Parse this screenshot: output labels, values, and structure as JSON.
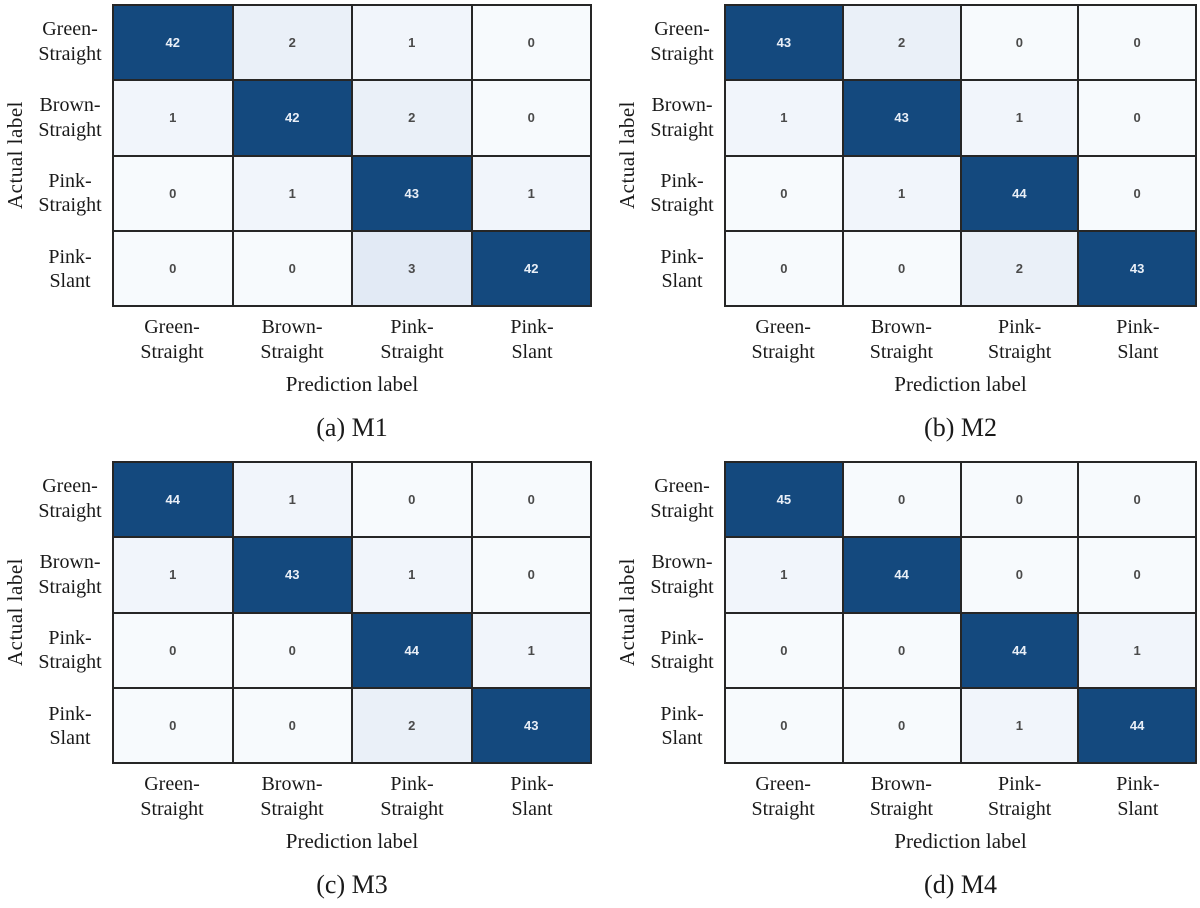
{
  "figure": {
    "y_axis_label": "Actual label",
    "x_axis_label": "Prediction label"
  },
  "labels": {
    "classes": [
      "Green-Straight",
      "Brown-Straight",
      "Pink-Straight",
      "Pink-Slant"
    ],
    "class_lines": [
      [
        "Green-",
        "Straight"
      ],
      [
        "Brown-",
        "Straight"
      ],
      [
        "Pink-",
        "Straight"
      ],
      [
        "Pink-",
        "Slant"
      ]
    ]
  },
  "colors": {
    "diagonal_fill": "#14497E",
    "cell_text_on_dark": "#E9EFF7",
    "cell_text_on_light": "#4A4A4A",
    "light_scale": [
      "#F7FAFD",
      "#F1F5FB",
      "#EAF0F8",
      "#E2EAF5"
    ],
    "grid_line": "#262626",
    "diagonal_threshold": 10
  },
  "chart_data": [
    {
      "type": "heatmap",
      "title": "(a) M1",
      "xlabel": "Prediction label",
      "ylabel": "Actual label",
      "categories": [
        "Green-Straight",
        "Brown-Straight",
        "Pink-Straight",
        "Pink-Slant"
      ],
      "matrix": [
        [
          42,
          2,
          1,
          0
        ],
        [
          1,
          42,
          2,
          0
        ],
        [
          0,
          1,
          43,
          1
        ],
        [
          0,
          0,
          3,
          42
        ]
      ]
    },
    {
      "type": "heatmap",
      "title": "(b) M2",
      "xlabel": "Prediction label",
      "ylabel": "Actual label",
      "categories": [
        "Green-Straight",
        "Brown-Straight",
        "Pink-Straight",
        "Pink-Slant"
      ],
      "matrix": [
        [
          43,
          2,
          0,
          0
        ],
        [
          1,
          43,
          1,
          0
        ],
        [
          0,
          1,
          44,
          0
        ],
        [
          0,
          0,
          2,
          43
        ]
      ]
    },
    {
      "type": "heatmap",
      "title": "(c) M3",
      "xlabel": "Prediction label",
      "ylabel": "Actual label",
      "categories": [
        "Green-Straight",
        "Brown-Straight",
        "Pink-Straight",
        "Pink-Slant"
      ],
      "matrix": [
        [
          44,
          1,
          0,
          0
        ],
        [
          1,
          43,
          1,
          0
        ],
        [
          0,
          0,
          44,
          1
        ],
        [
          0,
          0,
          2,
          43
        ]
      ]
    },
    {
      "type": "heatmap",
      "title": "(d) M4",
      "xlabel": "Prediction label",
      "ylabel": "Actual label",
      "categories": [
        "Green-Straight",
        "Brown-Straight",
        "Pink-Straight",
        "Pink-Slant"
      ],
      "matrix": [
        [
          45,
          0,
          0,
          0
        ],
        [
          1,
          44,
          0,
          0
        ],
        [
          0,
          0,
          44,
          1
        ],
        [
          0,
          0,
          1,
          44
        ]
      ]
    }
  ]
}
